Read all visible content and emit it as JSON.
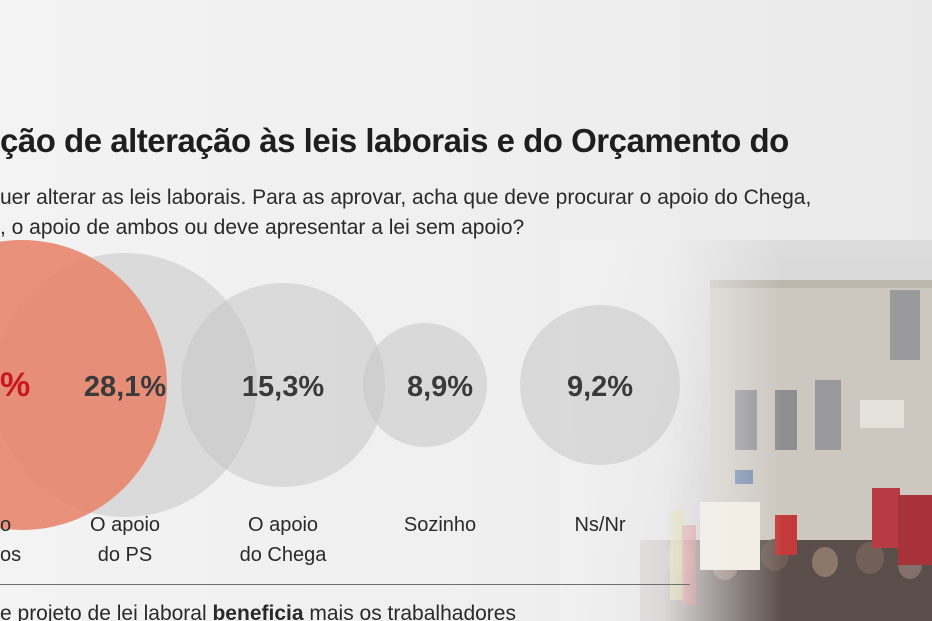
{
  "title": "ção de alteração às leis laborais e do Orçamento do",
  "subtitle_line1": "uer alterar as leis laborais. Para as aprovar, acha que deve procurar o apoio do Chega,",
  "subtitle_line2": ", o apoio de ambos ou deve apresentar a lei sem apoio?",
  "next_question": {
    "before": "e projeto de lei laboral ",
    "bold": "beneficia",
    "after": " mais os trabalhadores"
  },
  "colors": {
    "highlight_bubble": "#e8836a",
    "bubble": "#c7c7c7",
    "highlight_text": "#c8181e"
  },
  "chart_data": {
    "type": "bubble",
    "title": "",
    "items": [
      {
        "value": null,
        "value_label": "%",
        "label_lines": [
          "o",
          "os"
        ],
        "highlight": true
      },
      {
        "value": 28.1,
        "value_label": "28,1%",
        "label_lines": [
          "O apoio",
          "do PS"
        ],
        "highlight": false
      },
      {
        "value": 15.3,
        "value_label": "15,3%",
        "label_lines": [
          "O apoio",
          "do Chega"
        ],
        "highlight": false
      },
      {
        "value": 8.9,
        "value_label": "8,9%",
        "label_lines": [
          "Sozinho"
        ],
        "highlight": false
      },
      {
        "value": 9.2,
        "value_label": "9,2%",
        "label_lines": [
          "Ns/Nr"
        ],
        "highlight": false
      }
    ]
  }
}
